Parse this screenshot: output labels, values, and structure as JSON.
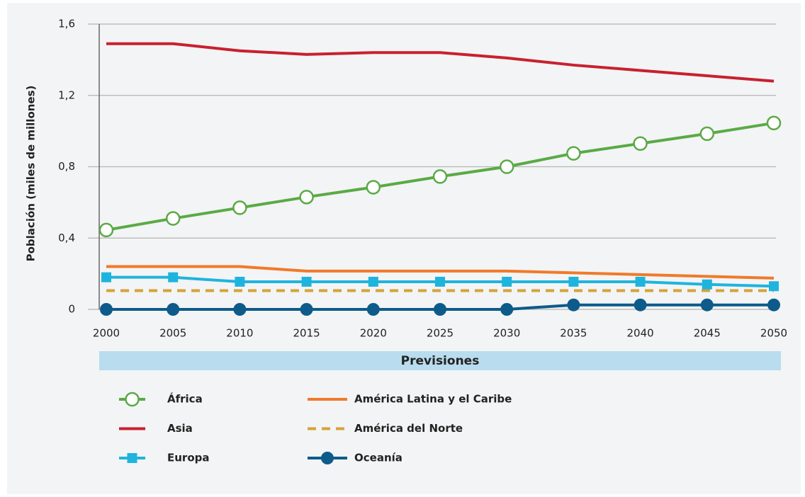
{
  "chart_data": {
    "type": "line",
    "ylabel": "Población (miles de millones)",
    "band_label": "Previsiones",
    "x": [
      2000,
      2005,
      2010,
      2015,
      2020,
      2025,
      2030,
      2035,
      2040,
      2045,
      2050
    ],
    "xlim": [
      2000,
      2050
    ],
    "xticks": [
      2000,
      2005,
      2010,
      2015,
      2020,
      2025,
      2030,
      2035,
      2040,
      2045,
      2050
    ],
    "ylim": [
      0,
      1.6
    ],
    "yticks": [
      {
        "value": 0,
        "label": "0"
      },
      {
        "value": 0.4,
        "label": "0,4"
      },
      {
        "value": 0.8,
        "label": "0,8"
      },
      {
        "value": 1.2,
        "label": "1,2"
      },
      {
        "value": 1.6,
        "label": "1,6"
      }
    ],
    "grid": true,
    "series": [
      {
        "name": "África",
        "color": "#5aaa46",
        "marker": "open-circle",
        "values": [
          0.445,
          0.51,
          0.57,
          0.63,
          0.685,
          0.745,
          0.8,
          0.875,
          0.93,
          0.985,
          1.045
        ]
      },
      {
        "name": "América Latina y el Caribe",
        "color": "#f07a2a",
        "values": [
          0.24,
          0.24,
          0.24,
          0.215,
          0.215,
          0.215,
          0.215,
          0.205,
          0.195,
          0.185,
          0.175
        ]
      },
      {
        "name": "Asia",
        "color": "#c8202f",
        "values": [
          1.49,
          1.49,
          1.45,
          1.43,
          1.44,
          1.44,
          1.41,
          1.37,
          1.34,
          1.31,
          1.28
        ]
      },
      {
        "name": "América del Norte",
        "color": "#d4a33a",
        "dashed": true,
        "values": [
          0.105,
          0.105,
          0.105,
          0.105,
          0.105,
          0.105,
          0.105,
          0.105,
          0.105,
          0.105,
          0.105
        ]
      },
      {
        "name": "Europa",
        "color": "#1fb4de",
        "marker": "square",
        "values": [
          0.18,
          0.18,
          0.155,
          0.155,
          0.155,
          0.155,
          0.155,
          0.155,
          0.155,
          0.14,
          0.13
        ]
      },
      {
        "name": "Oceanía",
        "color": "#0d5b8a",
        "marker": "circle",
        "values": [
          0,
          0,
          0,
          0,
          0,
          0,
          0,
          0.025,
          0.025,
          0.025,
          0.025
        ]
      }
    ]
  }
}
